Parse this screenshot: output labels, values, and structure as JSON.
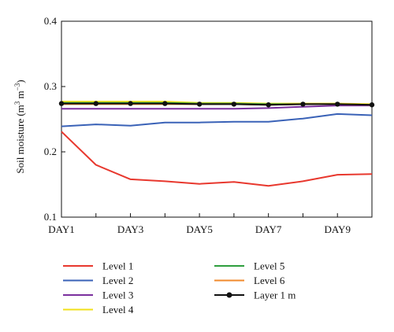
{
  "chart_data": {
    "type": "line",
    "title": "",
    "xlabel": "",
    "ylabel_parts": {
      "prefix": "Soil moisture (m",
      "exp1": "3",
      "middle": " m",
      "exp2": "−3",
      "suffix": ")"
    },
    "x": [
      1,
      2,
      3,
      4,
      5,
      6,
      7,
      8,
      9,
      10
    ],
    "xticks": [
      1,
      3,
      5,
      7,
      9
    ],
    "xtick_labels": [
      "DAY1",
      "DAY3",
      "DAY5",
      "DAY7",
      "DAY9"
    ],
    "xlim": [
      1,
      10
    ],
    "ylim": [
      0.1,
      0.4
    ],
    "yticks": [
      0.1,
      0.2,
      0.3,
      0.4
    ],
    "ytick_labels": [
      "0.1",
      "0.2",
      "0.3",
      "0.4"
    ],
    "grid": false,
    "legend_placement": "below",
    "series": [
      {
        "name": "Level 1",
        "color": "#e8382e",
        "markers": false,
        "values": [
          0.231,
          0.18,
          0.158,
          0.155,
          0.151,
          0.154,
          0.148,
          0.155,
          0.165,
          0.166
        ]
      },
      {
        "name": "Level 2",
        "color": "#3a62b7",
        "markers": false,
        "values": [
          0.239,
          0.242,
          0.24,
          0.245,
          0.245,
          0.246,
          0.246,
          0.251,
          0.258,
          0.256
        ]
      },
      {
        "name": "Level 3",
        "color": "#7b2f9e",
        "markers": false,
        "values": [
          0.266,
          0.266,
          0.266,
          0.266,
          0.266,
          0.266,
          0.267,
          0.269,
          0.271,
          0.271
        ]
      },
      {
        "name": "Level 4",
        "color": "#f2e01a",
        "markers": false,
        "values": [
          0.277,
          0.277,
          0.277,
          0.277,
          0.275,
          0.275,
          0.274,
          0.274,
          0.274,
          0.273
        ]
      },
      {
        "name": "Level 5",
        "color": "#2e9e3e",
        "markers": false,
        "values": [
          0.275,
          0.275,
          0.275,
          0.275,
          0.274,
          0.274,
          0.273,
          0.273,
          0.273,
          0.272
        ]
      },
      {
        "name": "Level 6",
        "color": "#f08a2c",
        "markers": false,
        "values": [
          0.273,
          0.273,
          0.273,
          0.273,
          0.273,
          0.273,
          0.272,
          0.273,
          0.273,
          0.272
        ]
      },
      {
        "name": "Layer 1 m",
        "color": "#111111",
        "markers": true,
        "values": [
          0.274,
          0.274,
          0.274,
          0.274,
          0.273,
          0.273,
          0.272,
          0.273,
          0.273,
          0.272
        ]
      }
    ]
  }
}
